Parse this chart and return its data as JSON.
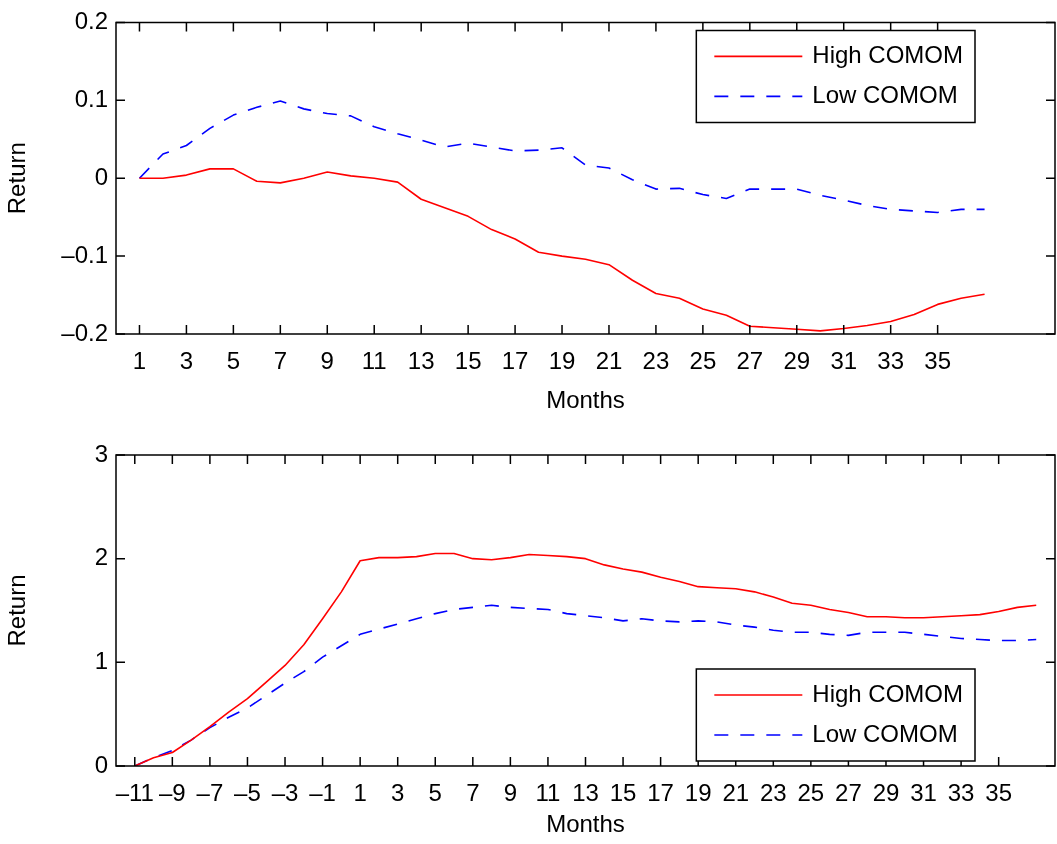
{
  "chart_data": [
    {
      "type": "line",
      "xlabel": "Months",
      "ylabel": "Return",
      "x": [
        1,
        2,
        3,
        4,
        5,
        6,
        7,
        8,
        9,
        10,
        11,
        12,
        13,
        14,
        15,
        16,
        17,
        18,
        19,
        20,
        21,
        22,
        23,
        24,
        25,
        26,
        27,
        28,
        29,
        30,
        31,
        32,
        33,
        34,
        35,
        36,
        37
      ],
      "series": [
        {
          "name": "High COMOM",
          "color": "#ff0000",
          "line_style": "solid",
          "values": [
            0,
            0,
            0.004,
            0.012,
            0.012,
            -0.004,
            -0.006,
            0,
            0.008,
            0.003,
            0,
            -0.005,
            -0.027,
            -0.038,
            -0.049,
            -0.066,
            -0.078,
            -0.095,
            -0.1,
            -0.104,
            -0.111,
            -0.131,
            -0.148,
            -0.154,
            -0.168,
            -0.176,
            -0.19,
            -0.192,
            -0.194,
            -0.196,
            -0.193,
            -0.189,
            -0.184,
            -0.175,
            -0.162,
            -0.154,
            -0.149
          ]
        },
        {
          "name": "Low COMOM",
          "color": "#0000ff",
          "line_style": "dashed",
          "values": [
            0,
            0.031,
            0.042,
            0.064,
            0.081,
            0.091,
            0.099,
            0.089,
            0.083,
            0.08,
            0.066,
            0.057,
            0.049,
            0.04,
            0.045,
            0.04,
            0.035,
            0.036,
            0.039,
            0.017,
            0.013,
            -0.002,
            -0.014,
            -0.013,
            -0.021,
            -0.026,
            -0.014,
            -0.014,
            -0.014,
            -0.022,
            -0.028,
            -0.035,
            -0.04,
            -0.042,
            -0.044,
            -0.04,
            -0.04
          ]
        }
      ],
      "xlim": [
        0,
        40
      ],
      "xticks": [
        1,
        3,
        5,
        7,
        9,
        11,
        13,
        15,
        17,
        19,
        21,
        23,
        25,
        27,
        29,
        31,
        33,
        35
      ],
      "ylim": [
        -0.2,
        0.2
      ],
      "yticks": [
        {
          "value": -0.2,
          "label": "–0.2"
        },
        {
          "value": -0.1,
          "label": "–0.1"
        },
        0,
        0.1,
        0.2
      ],
      "grid": false,
      "legend": "top right",
      "marker": "none"
    },
    {
      "type": "line",
      "xlabel": "Months",
      "ylabel": "Return",
      "x": [
        -11,
        -10,
        -9,
        -8,
        -7,
        -6,
        -5,
        -4,
        -3,
        -2,
        -1,
        0,
        1,
        2,
        3,
        4,
        5,
        6,
        7,
        8,
        9,
        10,
        11,
        12,
        13,
        14,
        15,
        16,
        17,
        18,
        19,
        20,
        21,
        22,
        23,
        24,
        25,
        26,
        27,
        28,
        29,
        30,
        31,
        32,
        33,
        34,
        35,
        36,
        37
      ],
      "series": [
        {
          "name": "High COMOM",
          "color": "#ff0000",
          "line_style": "solid",
          "values": [
            0,
            0.08,
            0.13,
            0.25,
            0.38,
            0.52,
            0.65,
            0.81,
            0.97,
            1.17,
            1.42,
            1.68,
            1.98,
            2.01,
            2.01,
            2.02,
            2.05,
            2.05,
            2.0,
            1.99,
            2.01,
            2.04,
            2.03,
            2.02,
            2.0,
            1.94,
            1.9,
            1.87,
            1.82,
            1.78,
            1.73,
            1.72,
            1.71,
            1.68,
            1.63,
            1.57,
            1.55,
            1.51,
            1.48,
            1.44,
            1.44,
            1.43,
            1.43,
            1.44,
            1.45,
            1.46,
            1.49,
            1.53,
            1.55
          ]
        },
        {
          "name": "Low COMOM",
          "color": "#0000ff",
          "line_style": "dashed",
          "values": [
            0,
            0.08,
            0.15,
            0.25,
            0.37,
            0.47,
            0.56,
            0.68,
            0.8,
            0.91,
            1.05,
            1.16,
            1.27,
            1.32,
            1.37,
            1.42,
            1.47,
            1.51,
            1.53,
            1.55,
            1.53,
            1.52,
            1.51,
            1.47,
            1.45,
            1.43,
            1.4,
            1.42,
            1.4,
            1.39,
            1.4,
            1.39,
            1.36,
            1.34,
            1.31,
            1.29,
            1.29,
            1.27,
            1.26,
            1.29,
            1.29,
            1.29,
            1.27,
            1.25,
            1.23,
            1.22,
            1.21,
            1.21,
            1.22
          ]
        }
      ],
      "xlim": [
        -12,
        38
      ],
      "xticks": [
        {
          "value": -11,
          "label": "–11"
        },
        {
          "value": -9,
          "label": "–9"
        },
        {
          "value": -7,
          "label": "–7"
        },
        {
          "value": -5,
          "label": "–5"
        },
        {
          "value": -3,
          "label": "–3"
        },
        {
          "value": -1,
          "label": "–1"
        },
        1,
        3,
        5,
        7,
        9,
        11,
        13,
        15,
        17,
        19,
        21,
        23,
        25,
        27,
        29,
        31,
        33,
        35
      ],
      "ylim": [
        0,
        3
      ],
      "yticks": [
        0,
        1,
        2,
        3
      ],
      "grid": false,
      "legend": "bottom right",
      "marker": "none"
    }
  ]
}
